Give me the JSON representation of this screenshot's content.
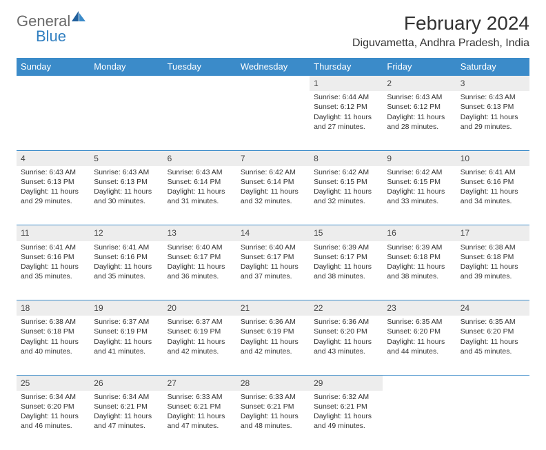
{
  "brand": {
    "part1": "General",
    "part2": "Blue"
  },
  "title": "February 2024",
  "location": "Diguvametta, Andhra Pradesh, India",
  "colors": {
    "header_bg": "#3b8bc9",
    "header_text": "#ffffff",
    "daynum_bg": "#ededed",
    "row_border": "#3b8bc9",
    "body_text": "#333333",
    "logo_gray": "#6b6b6b",
    "logo_blue": "#2f7ec0"
  },
  "typography": {
    "title_fontsize": 28,
    "location_fontsize": 16,
    "dayheader_fontsize": 13,
    "daynum_fontsize": 12,
    "cell_fontsize": 10.5
  },
  "day_names": [
    "Sunday",
    "Monday",
    "Tuesday",
    "Wednesday",
    "Thursday",
    "Friday",
    "Saturday"
  ],
  "labels": {
    "sunrise": "Sunrise:",
    "sunset": "Sunset:",
    "daylight": "Daylight:"
  },
  "weeks": [
    [
      null,
      null,
      null,
      null,
      {
        "n": "1",
        "sunrise": "6:44 AM",
        "sunset": "6:12 PM",
        "daylight1": "11 hours",
        "daylight2": "and 27 minutes."
      },
      {
        "n": "2",
        "sunrise": "6:43 AM",
        "sunset": "6:12 PM",
        "daylight1": "11 hours",
        "daylight2": "and 28 minutes."
      },
      {
        "n": "3",
        "sunrise": "6:43 AM",
        "sunset": "6:13 PM",
        "daylight1": "11 hours",
        "daylight2": "and 29 minutes."
      }
    ],
    [
      {
        "n": "4",
        "sunrise": "6:43 AM",
        "sunset": "6:13 PM",
        "daylight1": "11 hours",
        "daylight2": "and 29 minutes."
      },
      {
        "n": "5",
        "sunrise": "6:43 AM",
        "sunset": "6:13 PM",
        "daylight1": "11 hours",
        "daylight2": "and 30 minutes."
      },
      {
        "n": "6",
        "sunrise": "6:43 AM",
        "sunset": "6:14 PM",
        "daylight1": "11 hours",
        "daylight2": "and 31 minutes."
      },
      {
        "n": "7",
        "sunrise": "6:42 AM",
        "sunset": "6:14 PM",
        "daylight1": "11 hours",
        "daylight2": "and 32 minutes."
      },
      {
        "n": "8",
        "sunrise": "6:42 AM",
        "sunset": "6:15 PM",
        "daylight1": "11 hours",
        "daylight2": "and 32 minutes."
      },
      {
        "n": "9",
        "sunrise": "6:42 AM",
        "sunset": "6:15 PM",
        "daylight1": "11 hours",
        "daylight2": "and 33 minutes."
      },
      {
        "n": "10",
        "sunrise": "6:41 AM",
        "sunset": "6:16 PM",
        "daylight1": "11 hours",
        "daylight2": "and 34 minutes."
      }
    ],
    [
      {
        "n": "11",
        "sunrise": "6:41 AM",
        "sunset": "6:16 PM",
        "daylight1": "11 hours",
        "daylight2": "and 35 minutes."
      },
      {
        "n": "12",
        "sunrise": "6:41 AM",
        "sunset": "6:16 PM",
        "daylight1": "11 hours",
        "daylight2": "and 35 minutes."
      },
      {
        "n": "13",
        "sunrise": "6:40 AM",
        "sunset": "6:17 PM",
        "daylight1": "11 hours",
        "daylight2": "and 36 minutes."
      },
      {
        "n": "14",
        "sunrise": "6:40 AM",
        "sunset": "6:17 PM",
        "daylight1": "11 hours",
        "daylight2": "and 37 minutes."
      },
      {
        "n": "15",
        "sunrise": "6:39 AM",
        "sunset": "6:17 PM",
        "daylight1": "11 hours",
        "daylight2": "and 38 minutes."
      },
      {
        "n": "16",
        "sunrise": "6:39 AM",
        "sunset": "6:18 PM",
        "daylight1": "11 hours",
        "daylight2": "and 38 minutes."
      },
      {
        "n": "17",
        "sunrise": "6:38 AM",
        "sunset": "6:18 PM",
        "daylight1": "11 hours",
        "daylight2": "and 39 minutes."
      }
    ],
    [
      {
        "n": "18",
        "sunrise": "6:38 AM",
        "sunset": "6:18 PM",
        "daylight1": "11 hours",
        "daylight2": "and 40 minutes."
      },
      {
        "n": "19",
        "sunrise": "6:37 AM",
        "sunset": "6:19 PM",
        "daylight1": "11 hours",
        "daylight2": "and 41 minutes."
      },
      {
        "n": "20",
        "sunrise": "6:37 AM",
        "sunset": "6:19 PM",
        "daylight1": "11 hours",
        "daylight2": "and 42 minutes."
      },
      {
        "n": "21",
        "sunrise": "6:36 AM",
        "sunset": "6:19 PM",
        "daylight1": "11 hours",
        "daylight2": "and 42 minutes."
      },
      {
        "n": "22",
        "sunrise": "6:36 AM",
        "sunset": "6:20 PM",
        "daylight1": "11 hours",
        "daylight2": "and 43 minutes."
      },
      {
        "n": "23",
        "sunrise": "6:35 AM",
        "sunset": "6:20 PM",
        "daylight1": "11 hours",
        "daylight2": "and 44 minutes."
      },
      {
        "n": "24",
        "sunrise": "6:35 AM",
        "sunset": "6:20 PM",
        "daylight1": "11 hours",
        "daylight2": "and 45 minutes."
      }
    ],
    [
      {
        "n": "25",
        "sunrise": "6:34 AM",
        "sunset": "6:20 PM",
        "daylight1": "11 hours",
        "daylight2": "and 46 minutes."
      },
      {
        "n": "26",
        "sunrise": "6:34 AM",
        "sunset": "6:21 PM",
        "daylight1": "11 hours",
        "daylight2": "and 47 minutes."
      },
      {
        "n": "27",
        "sunrise": "6:33 AM",
        "sunset": "6:21 PM",
        "daylight1": "11 hours",
        "daylight2": "and 47 minutes."
      },
      {
        "n": "28",
        "sunrise": "6:33 AM",
        "sunset": "6:21 PM",
        "daylight1": "11 hours",
        "daylight2": "and 48 minutes."
      },
      {
        "n": "29",
        "sunrise": "6:32 AM",
        "sunset": "6:21 PM",
        "daylight1": "11 hours",
        "daylight2": "and 49 minutes."
      },
      null,
      null
    ]
  ]
}
